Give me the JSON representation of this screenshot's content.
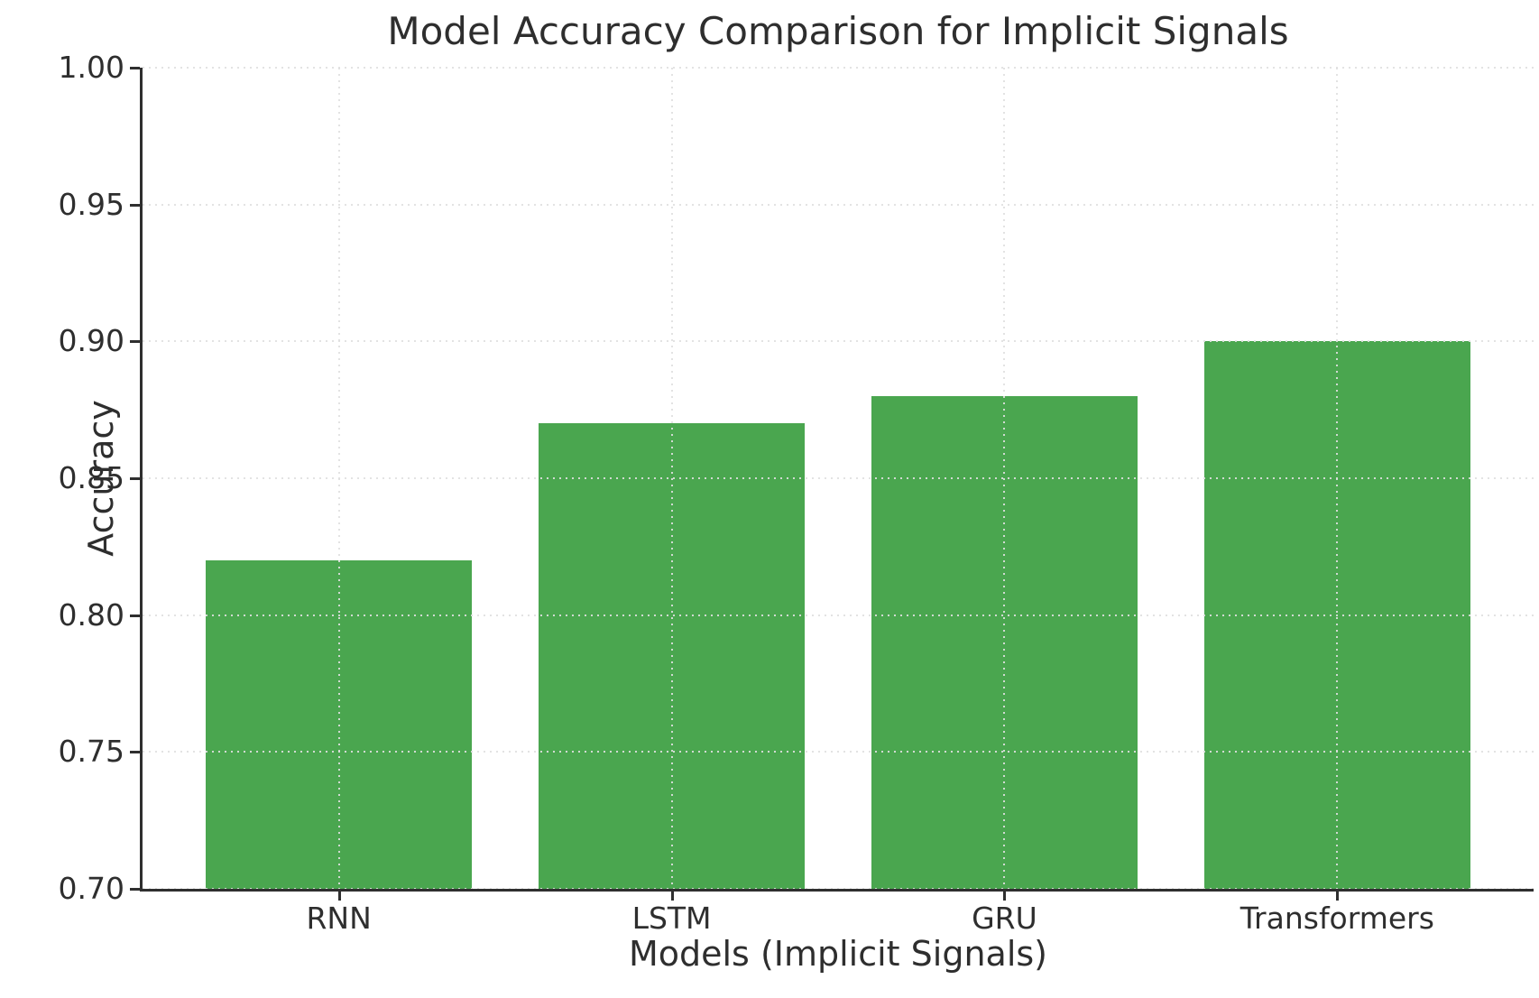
{
  "chart_data": {
    "type": "bar",
    "title": "Model Accuracy Comparison for Implicit Signals",
    "xlabel": "Models (Implicit Signals)",
    "ylabel": "Accuracy",
    "categories": [
      "RNN",
      "LSTM",
      "GRU",
      "Transformers"
    ],
    "values": [
      0.82,
      0.87,
      0.88,
      0.9
    ],
    "ylim": [
      0.7,
      1.0
    ],
    "yticks": [
      0.7,
      0.75,
      0.8,
      0.85,
      0.9,
      0.95,
      1.0
    ],
    "ytick_labels": [
      "0.70",
      "0.75",
      "0.80",
      "0.85",
      "0.90",
      "0.95",
      "1.00"
    ],
    "grid": true,
    "grid_style": "dotted",
    "legend_position": "none",
    "colors": {
      "bar": "#4aa64f",
      "spine": "#2f2f2f",
      "text": "#2e2e2e",
      "grid": "#e0e0e0"
    }
  }
}
